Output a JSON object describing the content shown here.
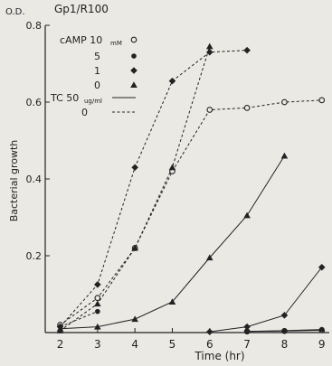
{
  "chart_data": {
    "type": "line",
    "title": "Gp1/R100",
    "xlabel": "Time (hr)",
    "ylabel": "Bacterial growth",
    "y_unit_label": "O.D.",
    "xlim": [
      1.6,
      9.2
    ],
    "ylim": [
      0,
      0.8
    ],
    "x_ticks": [
      2,
      3,
      4,
      5,
      6,
      7,
      8,
      9
    ],
    "y_ticks": [
      0.2,
      0.4,
      0.6,
      0.8
    ],
    "y_tick_labels": [
      "0.2",
      "0.4",
      "0.6",
      "0.8"
    ],
    "grid": false,
    "legend_placement": "top-left",
    "legend": {
      "camp_label": "cAMP 10",
      "camp_unit": "mM",
      "tc_label": "TC 50",
      "tc_unit": "ug/ml",
      "tc_doses": [
        {
          "label": "",
          "style": "solid"
        },
        {
          "label": "0",
          "style": "dashed"
        }
      ],
      "camp_doses": [
        {
          "label": "",
          "marker": "open-circle"
        },
        {
          "label": "5",
          "marker": "filled-circle"
        },
        {
          "label": "1",
          "marker": "diamond"
        },
        {
          "label": "0",
          "marker": "triangle"
        }
      ]
    },
    "series": [
      {
        "camp_mM": 10,
        "tc": 50,
        "marker": "open-circle",
        "style": "solid",
        "x": [
          7,
          8,
          9
        ],
        "y": [
          0.003,
          0.004,
          0.006
        ]
      },
      {
        "camp_mM": 5,
        "tc": 50,
        "marker": "filled-circle",
        "style": "solid",
        "x": [
          7,
          8,
          9
        ],
        "y": [
          0.003,
          0.005,
          0.008
        ]
      },
      {
        "camp_mM": 1,
        "tc": 50,
        "marker": "diamond",
        "style": "solid",
        "x": [
          6,
          7,
          8,
          9
        ],
        "y": [
          0.002,
          0.015,
          0.045,
          0.17
        ]
      },
      {
        "camp_mM": 0,
        "tc": 50,
        "marker": "triangle",
        "style": "solid",
        "x": [
          2,
          3,
          4,
          5,
          6,
          7,
          8
        ],
        "y": [
          0.01,
          0.015,
          0.035,
          0.08,
          0.195,
          0.305,
          0.46
        ]
      },
      {
        "camp_mM": 10,
        "tc": 0,
        "marker": "open-circle",
        "style": "dashed",
        "x": [
          2,
          3,
          4,
          5,
          6,
          7,
          8,
          9
        ],
        "y": [
          0.02,
          0.09,
          0.22,
          0.42,
          0.58,
          0.585,
          0.6,
          0.605
        ]
      },
      {
        "camp_mM": 5,
        "tc": 0,
        "marker": "filled-circle",
        "style": "dashed",
        "x": [
          2,
          3
        ],
        "y": [
          0.015,
          0.055
        ]
      },
      {
        "camp_mM": 1,
        "tc": 0,
        "marker": "diamond",
        "style": "dashed",
        "x": [
          2,
          3,
          4,
          5,
          6,
          7
        ],
        "y": [
          0.015,
          0.125,
          0.43,
          0.655,
          0.73,
          0.735
        ]
      },
      {
        "camp_mM": 0,
        "tc": 0,
        "marker": "triangle",
        "style": "dashed",
        "x": [
          2,
          3,
          4,
          5,
          6
        ],
        "y": [
          0.005,
          0.075,
          0.22,
          0.43,
          0.745
        ]
      }
    ]
  }
}
